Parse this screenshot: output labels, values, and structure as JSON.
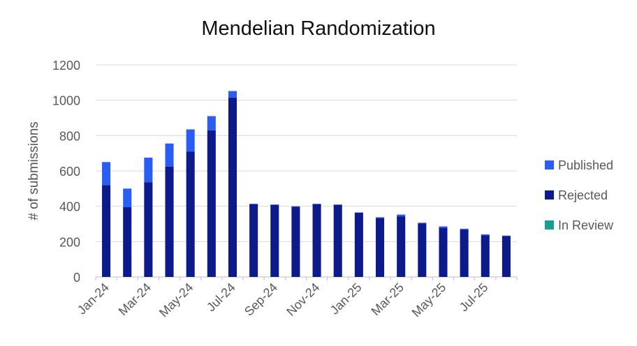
{
  "chart_data": {
    "type": "bar",
    "stacked": true,
    "title": "Mendelian Randomization",
    "xlabel": "",
    "ylabel": "# of submissions",
    "ylim": [
      0,
      1200
    ],
    "yticks": [
      "0",
      "200",
      "400",
      "600",
      "800",
      "1000",
      "1200"
    ],
    "grid": true,
    "legend_position": "right",
    "categories": [
      "Jan-24",
      "Feb-24",
      "Mar-24",
      "Apr-24",
      "May-24",
      "Jun-24",
      "Jul-24",
      "Aug-24",
      "Sep-24",
      "Oct-24",
      "Nov-24",
      "Dec-24",
      "Jan-25",
      "Feb-25",
      "Mar-25",
      "Apr-25",
      "May-25",
      "Jun-25",
      "Jul-25",
      "Aug-25"
    ],
    "xtick_labels": [
      "Jan-24",
      "",
      "Mar-24",
      "",
      "May-24",
      "",
      "Jul-24",
      "",
      "Sep-24",
      "",
      "Nov-24",
      "",
      "Jan-25",
      "",
      "Mar-25",
      "",
      "May-25",
      "",
      "Jul-25",
      ""
    ],
    "series": [
      {
        "name": "In Review",
        "color": "#1a9e8f",
        "values": [
          0,
          0,
          0,
          0,
          0,
          0,
          0,
          0,
          0,
          0,
          0,
          0,
          0,
          0,
          0,
          0,
          0,
          0,
          0,
          0
        ]
      },
      {
        "name": "Rejected",
        "color": "#0d1a8a",
        "values": [
          520,
          395,
          535,
          625,
          710,
          830,
          1015,
          412,
          408,
          398,
          412,
          408,
          363,
          333,
          343,
          302,
          278,
          268,
          236,
          232
        ]
      },
      {
        "name": "Published",
        "color": "#2a5ef2",
        "values": [
          130,
          105,
          140,
          130,
          125,
          80,
          37,
          2,
          2,
          2,
          2,
          2,
          2,
          5,
          10,
          5,
          8,
          5,
          5,
          2
        ]
      }
    ]
  }
}
